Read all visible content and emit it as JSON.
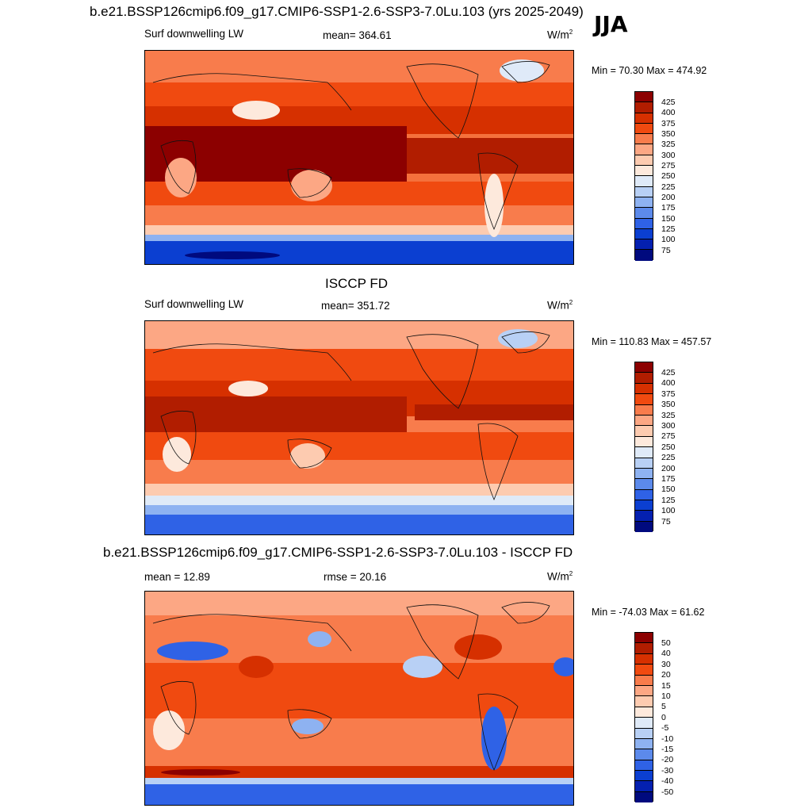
{
  "season": "JJA",
  "panels": [
    {
      "title": "b.e21.BSSP126cmip6.f09_g17.CMIP6-SSP1-2.6-SSP3-7.0Lu.103 (yrs 2025-2049)",
      "left_label": "Surf downwelling LW",
      "center_label": "mean= 364.61",
      "units": "W/m",
      "units_sup": "2",
      "minmax": "Min =  70.30 Max = 474.92",
      "colorbar_labels": [
        "425",
        "400",
        "375",
        "350",
        "325",
        "300",
        "275",
        "250",
        "225",
        "200",
        "175",
        "150",
        "125",
        "100",
        "75"
      ]
    },
    {
      "title": "ISCCP FD",
      "left_label": "Surf downwelling LW",
      "center_label": "mean= 351.72",
      "units": "W/m",
      "units_sup": "2",
      "minmax": "Min = 110.83 Max = 457.57",
      "colorbar_labels": [
        "425",
        "400",
        "375",
        "350",
        "325",
        "300",
        "275",
        "250",
        "225",
        "200",
        "175",
        "150",
        "125",
        "100",
        "75"
      ]
    },
    {
      "title": "b.e21.BSSP126cmip6.f09_g17.CMIP6-SSP1-2.6-SSP3-7.0Lu.103 - ISCCP FD",
      "left_label": "mean =  12.89",
      "center_label": "rmse =  20.16",
      "units": "W/m",
      "units_sup": "2",
      "minmax": "Min = -74.03 Max =  61.62",
      "colorbar_labels": [
        "50",
        "40",
        "30",
        "20",
        "15",
        "10",
        "5",
        "0",
        "-5",
        "-10",
        "-15",
        "-20",
        "-30",
        "-40",
        "-50"
      ]
    }
  ],
  "colorbar_colors": [
    "#8c0000",
    "#b11d00",
    "#d63000",
    "#f04a10",
    "#f87c4c",
    "#fca784",
    "#fdcbb0",
    "#fde9dc",
    "#dfeaf8",
    "#b8d0f5",
    "#8eb2f1",
    "#5c8aeb",
    "#2f62e6",
    "#0b3fd1",
    "#0420b0",
    "#000a7e"
  ]
}
